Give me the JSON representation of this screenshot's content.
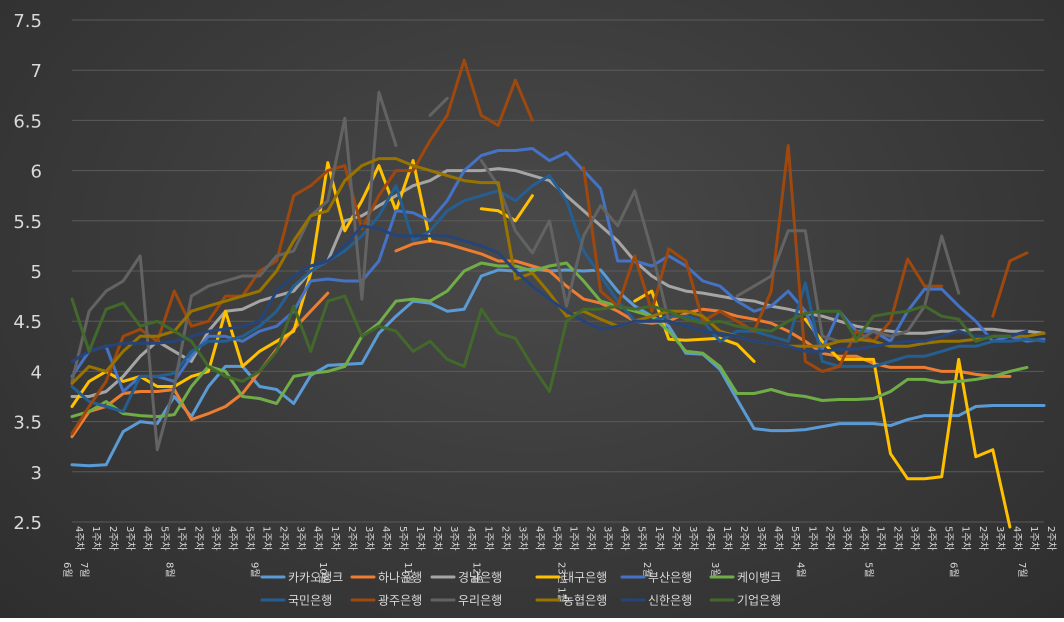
{
  "chart_data": {
    "type": "line",
    "title": "",
    "xlabel": "",
    "ylabel": "",
    "ylim": [
      2.5,
      7.5
    ],
    "yticks": [
      "2.5",
      "3",
      "3.5",
      "4",
      "4.5",
      "5",
      "5.5",
      "6",
      "6.5",
      "7",
      "7.5"
    ],
    "grid": "horizontal",
    "legend_position": "bottom",
    "x": [
      "6월 4주차",
      "7월 1주차",
      "2주차",
      "3주차",
      "4주차",
      "5주차",
      "8월 1주차",
      "2주차",
      "3주차",
      "4주차",
      "5주차",
      "9월 1주차",
      "2주차",
      "3주차",
      "4주차",
      "10월 1주차",
      "2주차",
      "3주차",
      "4주차",
      "5주차",
      "11월 1주차",
      "2주차",
      "3주차",
      "4주차",
      "12월 1주차",
      "2주차",
      "3주차",
      "4주차",
      "5주차",
      "23년 1월 1주차",
      "2주차",
      "3주차",
      "4주차",
      "5주차",
      "2월 1주차",
      "2주차",
      "3주차",
      "4주차",
      "3월 1주차",
      "2주차",
      "3주차",
      "4주차",
      "5주차",
      "4월 1주차",
      "2주차",
      "3주차",
      "4주차",
      "5월 1주차",
      "2주차",
      "3주차",
      "4주차",
      "5주차",
      "6월 1주차",
      "2주차",
      "3주차",
      "4주차",
      "7월 1주차",
      "2주차"
    ],
    "series": [
      {
        "name": "카카오뱅크",
        "color": "#5b9bd5",
        "values": [
          3.07,
          3.06,
          3.07,
          3.4,
          3.5,
          3.48,
          3.75,
          3.55,
          3.85,
          4.05,
          4.05,
          3.85,
          3.82,
          3.68,
          3.96,
          4.06,
          4.07,
          4.08,
          4.38,
          4.55,
          4.7,
          4.68,
          4.6,
          4.62,
          4.95,
          5.01,
          5.0,
          5.02,
          5.0,
          5.01,
          5.0,
          5.01,
          4.8,
          4.65,
          4.55,
          4.45,
          4.18,
          4.17,
          4.02,
          3.72,
          3.43,
          3.41,
          3.41,
          3.42,
          3.45,
          3.48,
          3.48,
          3.48,
          3.46,
          3.52,
          3.56,
          3.56,
          3.56,
          3.65,
          3.66,
          3.66,
          3.66,
          3.66
        ]
      },
      {
        "name": "하나은행",
        "color": "#ed7d31",
        "values": [
          3.35,
          3.6,
          3.65,
          3.78,
          3.8,
          3.8,
          3.82,
          3.52,
          3.58,
          3.65,
          3.78,
          4.0,
          4.22,
          4.42,
          4.6,
          4.78,
          null,
          null,
          null,
          5.2,
          5.27,
          5.3,
          5.27,
          5.22,
          5.17,
          5.1,
          5.1,
          5.05,
          5.0,
          4.85,
          4.72,
          4.68,
          4.6,
          4.5,
          4.48,
          4.5,
          4.58,
          4.62,
          4.6,
          4.55,
          4.52,
          4.48,
          4.4,
          4.3,
          4.18,
          4.15,
          4.15,
          4.08,
          4.04,
          4.04,
          4.04,
          4.0,
          4.0,
          3.97,
          3.95,
          3.95,
          null,
          null
        ]
      },
      {
        "name": "경남은행",
        "color": "#a5a5a5",
        "values": [
          3.75,
          3.75,
          3.8,
          3.95,
          4.15,
          4.3,
          4.2,
          4.1,
          4.4,
          4.6,
          4.62,
          4.7,
          4.75,
          4.8,
          5.0,
          5.1,
          5.5,
          5.55,
          5.65,
          5.75,
          5.85,
          5.9,
          6.0,
          6.0,
          6.0,
          6.02,
          6.0,
          5.95,
          5.9,
          5.75,
          5.6,
          5.45,
          5.3,
          5.1,
          4.95,
          4.85,
          4.8,
          4.78,
          4.75,
          4.72,
          4.7,
          4.65,
          4.62,
          4.58,
          4.55,
          4.5,
          4.45,
          4.42,
          4.4,
          4.38,
          4.38,
          4.4,
          4.4,
          4.42,
          4.42,
          4.4,
          4.4,
          4.38
        ]
      },
      {
        "name": "대구은행",
        "color": "#ffc000",
        "values": [
          3.65,
          3.9,
          4.0,
          3.9,
          3.95,
          3.85,
          3.85,
          3.95,
          4.0,
          4.6,
          4.05,
          4.2,
          4.3,
          4.4,
          4.98,
          6.08,
          5.4,
          5.7,
          6.05,
          5.6,
          6.1,
          5.3,
          null,
          null,
          5.62,
          5.6,
          5.5,
          5.75,
          null,
          null,
          null,
          null,
          null,
          4.7,
          4.8,
          4.32,
          4.31,
          4.32,
          4.33,
          4.27,
          4.1,
          null,
          null,
          4.52,
          4.3,
          4.12,
          4.12,
          4.12,
          3.18,
          2.93,
          2.93,
          2.95,
          4.12,
          3.15,
          3.22,
          2.45,
          null,
          null
        ]
      },
      {
        "name": "부산은행",
        "color": "#4472c4",
        "values": [
          3.95,
          4.2,
          4.25,
          3.8,
          3.95,
          3.95,
          3.9,
          4.15,
          4.35,
          4.35,
          4.3,
          4.4,
          4.45,
          4.6,
          4.9,
          4.92,
          4.9,
          4.9,
          5.1,
          5.6,
          5.58,
          5.5,
          5.7,
          6.0,
          6.15,
          6.2,
          6.2,
          6.22,
          6.1,
          6.18,
          6.0,
          5.82,
          5.1,
          5.1,
          5.05,
          5.15,
          5.05,
          4.9,
          4.85,
          4.7,
          4.6,
          4.65,
          4.8,
          4.6,
          4.22,
          4.6,
          4.4,
          4.4,
          4.3,
          4.6,
          4.82,
          4.82,
          4.65,
          4.5,
          4.3,
          4.35,
          4.3,
          4.32
        ]
      },
      {
        "name": "케이뱅크",
        "color": "#70ad47",
        "values": [
          3.55,
          3.6,
          3.7,
          3.58,
          3.56,
          3.55,
          3.57,
          3.85,
          4.05,
          4.0,
          3.75,
          3.73,
          3.68,
          3.95,
          3.98,
          4.0,
          4.05,
          4.35,
          4.48,
          4.7,
          4.72,
          4.7,
          4.8,
          5.0,
          5.08,
          5.05,
          5.05,
          5.0,
          5.05,
          5.08,
          4.9,
          4.7,
          4.65,
          4.6,
          4.55,
          4.4,
          4.2,
          4.18,
          4.05,
          3.78,
          3.78,
          3.82,
          3.77,
          3.75,
          3.71,
          3.72,
          3.72,
          3.73,
          3.8,
          3.92,
          3.92,
          3.89,
          3.9,
          3.92,
          3.95,
          4.0,
          4.04,
          null
        ]
      },
      {
        "name": "국민은행",
        "color": "#255e91",
        "values": [
          3.85,
          3.7,
          3.65,
          3.6,
          3.95,
          3.95,
          3.98,
          4.2,
          4.3,
          4.3,
          4.35,
          4.45,
          4.6,
          4.85,
          5.0,
          5.1,
          5.2,
          5.35,
          5.55,
          5.85,
          5.3,
          5.4,
          5.6,
          5.7,
          5.75,
          5.8,
          5.7,
          5.85,
          5.95,
          5.7,
          5.2,
          4.95,
          4.7,
          4.5,
          4.5,
          4.55,
          4.55,
          4.5,
          4.3,
          4.4,
          4.4,
          4.35,
          4.3,
          4.88,
          4.1,
          4.05,
          4.05,
          4.05,
          4.1,
          4.15,
          4.15,
          4.2,
          4.25,
          4.25,
          4.3,
          4.3,
          4.32,
          4.3
        ]
      },
      {
        "name": "광주은행",
        "color": "#9e480e",
        "values": [
          3.38,
          3.65,
          3.9,
          4.35,
          4.42,
          4.3,
          4.8,
          4.45,
          4.5,
          4.75,
          4.75,
          5.0,
          5.1,
          5.75,
          5.85,
          6.0,
          6.05,
          5.42,
          5.75,
          6.0,
          6.0,
          6.3,
          6.55,
          7.1,
          6.55,
          6.45,
          6.9,
          6.5,
          null,
          null,
          6.03,
          4.8,
          4.65,
          5.15,
          4.6,
          5.22,
          5.1,
          4.5,
          4.6,
          4.5,
          4.4,
          4.8,
          6.25,
          4.1,
          4.0,
          4.05,
          4.4,
          4.3,
          4.5,
          5.12,
          4.85,
          4.85,
          null,
          null,
          4.55,
          5.1,
          5.18,
          null
        ]
      },
      {
        "name": "우리은행",
        "color": "#636363",
        "values": [
          3.9,
          4.6,
          4.8,
          4.9,
          5.15,
          3.22,
          3.85,
          4.75,
          4.85,
          4.9,
          4.95,
          4.95,
          5.15,
          5.2,
          5.55,
          5.7,
          6.52,
          4.72,
          6.78,
          6.25,
          null,
          6.55,
          6.72,
          null,
          6.1,
          5.85,
          5.4,
          5.18,
          5.5,
          4.65,
          5.35,
          5.65,
          5.45,
          5.8,
          5.2,
          4.5,
          null,
          null,
          null,
          4.75,
          4.85,
          4.95,
          5.4,
          5.4,
          4.35,
          4.3,
          4.3,
          4.4,
          4.35,
          4.4,
          4.65,
          5.35,
          4.78,
          null,
          null,
          null,
          null,
          null
        ]
      },
      {
        "name": "농협은행",
        "color": "#997300",
        "values": [
          3.88,
          4.05,
          4.0,
          4.2,
          4.35,
          4.35,
          4.4,
          4.6,
          4.65,
          4.7,
          4.75,
          4.8,
          5.0,
          5.3,
          5.55,
          5.6,
          5.9,
          6.05,
          6.12,
          6.12,
          6.05,
          6.0,
          5.95,
          5.9,
          5.88,
          5.88,
          4.92,
          4.98,
          4.78,
          4.55,
          4.6,
          4.52,
          4.45,
          4.5,
          4.55,
          4.6,
          4.6,
          4.55,
          4.4,
          4.35,
          4.3,
          4.28,
          4.25,
          4.25,
          4.25,
          4.3,
          4.32,
          4.3,
          4.25,
          4.25,
          4.28,
          4.3,
          4.3,
          4.32,
          4.35,
          4.35,
          4.35,
          4.38
        ]
      },
      {
        "name": "신한은행",
        "color": "#264478",
        "values": [
          4.1,
          4.2,
          4.25,
          4.28,
          4.28,
          4.28,
          4.3,
          4.35,
          4.4,
          4.42,
          4.45,
          4.5,
          4.8,
          4.95,
          5.05,
          5.1,
          5.25,
          5.45,
          5.42,
          5.35,
          5.35,
          5.35,
          5.35,
          5.3,
          5.25,
          5.18,
          5.0,
          4.85,
          4.72,
          4.6,
          4.5,
          4.42,
          4.45,
          4.5,
          4.5,
          4.5,
          4.45,
          4.4,
          4.38,
          4.35,
          4.3,
          4.28,
          4.25,
          4.2,
          4.2,
          4.22,
          4.22,
          4.25,
          4.28,
          4.3,
          4.3,
          4.35,
          4.4,
          4.35,
          4.35,
          4.35,
          4.4,
          null
        ]
      },
      {
        "name": "기업은행",
        "color": "#43682b",
        "values": [
          4.72,
          4.2,
          4.62,
          4.68,
          4.45,
          4.5,
          4.4,
          4.3,
          4.05,
          3.95,
          3.9,
          4.0,
          4.2,
          4.65,
          4.2,
          4.7,
          4.75,
          4.35,
          4.45,
          4.4,
          4.2,
          4.3,
          4.12,
          4.05,
          4.62,
          4.38,
          4.33,
          4.05,
          3.8,
          4.5,
          4.62,
          4.62,
          4.65,
          4.62,
          4.65,
          4.6,
          4.52,
          4.48,
          4.5,
          4.45,
          4.42,
          4.4,
          4.5,
          4.58,
          4.6,
          4.6,
          4.32,
          4.55,
          4.58,
          4.6,
          4.65,
          4.55,
          4.52,
          4.3,
          4.35,
          4.35,
          null,
          null
        ]
      }
    ]
  }
}
